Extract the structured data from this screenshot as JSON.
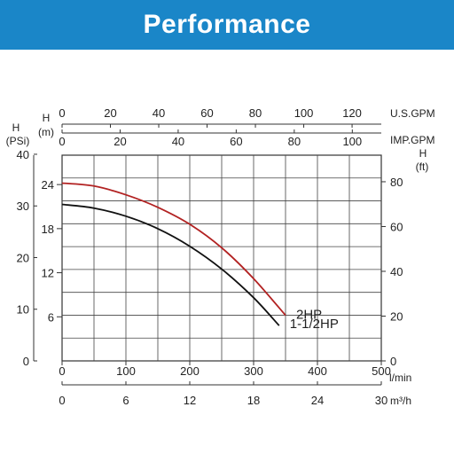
{
  "header": {
    "title": "Performance"
  },
  "colors": {
    "banner": "#1a86c8",
    "curve_2hp": "#b22222",
    "curve_1_5hp": "#111111",
    "grid": "#333333"
  },
  "chart_data": {
    "type": "line",
    "title": "",
    "grid": true,
    "x_primary": {
      "label": "l/min",
      "ticks": [
        0,
        100,
        200,
        300,
        400,
        500
      ],
      "range": [
        0,
        500
      ]
    },
    "x_secondary_bottom": {
      "label": "m³/h",
      "ticks": [
        0,
        6,
        12,
        18,
        24,
        30
      ],
      "range": [
        0,
        30
      ]
    },
    "x_top_us": {
      "label": "U.S.GPM",
      "ticks": [
        0,
        20,
        40,
        60,
        80,
        100,
        120
      ]
    },
    "x_top_imp": {
      "label": "IMP.GPM",
      "ticks": [
        0,
        20,
        40,
        60,
        80,
        100
      ]
    },
    "y_primary": {
      "label": "H\n(m)",
      "ticks": [
        6,
        12,
        18,
        24
      ],
      "range": [
        0,
        28
      ]
    },
    "y_psi": {
      "label": "H\n(PSi)",
      "ticks": [
        0,
        10,
        20,
        30,
        40
      ]
    },
    "y_ft": {
      "label": "H\n(ft)",
      "ticks": [
        0,
        20,
        40,
        60,
        80
      ]
    },
    "series": [
      {
        "name": "2HP",
        "x": [
          0,
          50,
          100,
          150,
          200,
          250,
          300,
          350
        ],
        "y": [
          24.2,
          23.8,
          22.6,
          20.9,
          18.6,
          15.4,
          11.2,
          6.2
        ]
      },
      {
        "name": "1-1/2HP",
        "x": [
          0,
          50,
          100,
          150,
          200,
          250,
          300,
          340
        ],
        "y": [
          21.3,
          20.8,
          19.7,
          18.0,
          15.6,
          12.5,
          8.6,
          4.8
        ]
      }
    ]
  }
}
